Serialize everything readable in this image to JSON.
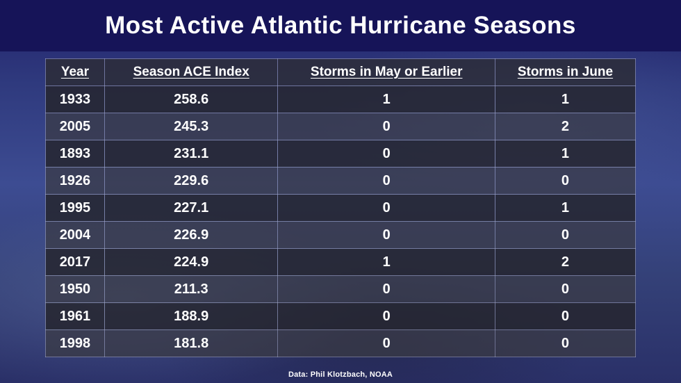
{
  "title": "Most Active Atlantic Hurricane Seasons",
  "footer": "Data: Phil Klotzbach, NOAA",
  "colors": {
    "title_band": "#161458",
    "background_blue": "#3d4c92",
    "row_dark": "rgba(38,38,46,0.85)",
    "text": "#ffffff"
  },
  "chart_data": {
    "type": "table",
    "title": "Most Active Atlantic Hurricane Seasons",
    "columns": [
      "Year",
      "Season ACE Index",
      "Storms in May or Earlier",
      "Storms in June"
    ],
    "rows": [
      [
        "1933",
        "258.6",
        "1",
        "1"
      ],
      [
        "2005",
        "245.3",
        "0",
        "2"
      ],
      [
        "1893",
        "231.1",
        "0",
        "1"
      ],
      [
        "1926",
        "229.6",
        "0",
        "0"
      ],
      [
        "1995",
        "227.1",
        "0",
        "1"
      ],
      [
        "2004",
        "226.9",
        "0",
        "0"
      ],
      [
        "2017",
        "224.9",
        "1",
        "2"
      ],
      [
        "1950",
        "211.3",
        "0",
        "0"
      ],
      [
        "1961",
        "188.9",
        "0",
        "0"
      ],
      [
        "1998",
        "181.8",
        "0",
        "0"
      ]
    ],
    "source": "Data: Phil Klotzbach, NOAA"
  }
}
